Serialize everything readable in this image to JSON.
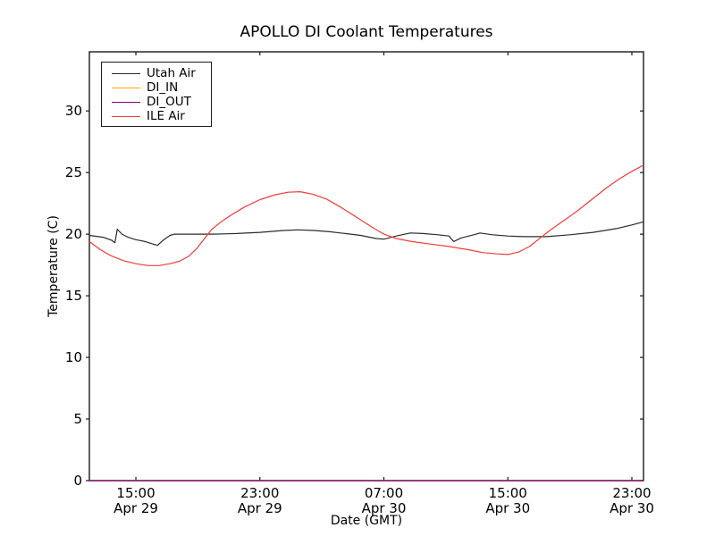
{
  "chart_data": {
    "type": "line",
    "title": "APOLLO DI Coolant Temperatures",
    "xlabel": "Date (GMT)",
    "ylabel": "Temperature (C)",
    "ylim": [
      0,
      34.8
    ],
    "xlim_hours": [
      0,
      35.75
    ],
    "grid": false,
    "legend_position": "upper left",
    "y_ticks": [
      0,
      5,
      10,
      15,
      20,
      25,
      30
    ],
    "x_ticks": [
      {
        "t": 3,
        "time": "15:00",
        "date": "Apr 29"
      },
      {
        "t": 11,
        "time": "23:00",
        "date": "Apr 29"
      },
      {
        "t": 19,
        "time": "07:00",
        "date": "Apr 30"
      },
      {
        "t": 27,
        "time": "15:00",
        "date": "Apr 30"
      },
      {
        "t": 35,
        "time": "23:00",
        "date": "Apr 30"
      }
    ],
    "series": [
      {
        "name": "Utah Air",
        "color": "#2b2b2b",
        "points": [
          [
            0,
            19.9
          ],
          [
            0.9,
            19.75
          ],
          [
            1.45,
            19.5
          ],
          [
            1.65,
            19.3
          ],
          [
            1.8,
            20.4
          ],
          [
            2.1,
            20.0
          ],
          [
            2.5,
            19.75
          ],
          [
            3.0,
            19.55
          ],
          [
            3.6,
            19.4
          ],
          [
            4.25,
            19.15
          ],
          [
            4.4,
            19.1
          ],
          [
            4.75,
            19.5
          ],
          [
            5.2,
            19.9
          ],
          [
            5.5,
            20.0
          ],
          [
            6.5,
            20.0
          ],
          [
            8.0,
            20.0
          ],
          [
            9.5,
            20.05
          ],
          [
            11.0,
            20.15
          ],
          [
            12.5,
            20.3
          ],
          [
            13.5,
            20.35
          ],
          [
            14.5,
            20.3
          ],
          [
            15.5,
            20.2
          ],
          [
            16.5,
            20.05
          ],
          [
            17.5,
            19.9
          ],
          [
            18.5,
            19.65
          ],
          [
            19.0,
            19.6
          ],
          [
            19.8,
            19.85
          ],
          [
            20.7,
            20.1
          ],
          [
            21.5,
            20.05
          ],
          [
            22.5,
            19.95
          ],
          [
            23.2,
            19.85
          ],
          [
            23.5,
            19.4
          ],
          [
            24.0,
            19.7
          ],
          [
            24.8,
            19.95
          ],
          [
            25.2,
            20.1
          ],
          [
            26.0,
            19.95
          ],
          [
            27.0,
            19.85
          ],
          [
            28.0,
            19.8
          ],
          [
            29.5,
            19.8
          ],
          [
            31.0,
            19.95
          ],
          [
            32.5,
            20.15
          ],
          [
            34.0,
            20.45
          ],
          [
            35.0,
            20.75
          ],
          [
            35.75,
            21.0
          ]
        ]
      },
      {
        "name": "DI_IN",
        "color": "#ffa500",
        "points": [
          [
            0,
            0
          ],
          [
            35.75,
            0
          ]
        ]
      },
      {
        "name": "DI_OUT",
        "color": "#800080",
        "points": [
          [
            0,
            0
          ],
          [
            35.75,
            0
          ]
        ]
      },
      {
        "name": "ILE Air",
        "color": "#f03b3b",
        "points": [
          [
            0,
            19.4
          ],
          [
            0.7,
            18.75
          ],
          [
            1.4,
            18.25
          ],
          [
            2.2,
            17.85
          ],
          [
            3.0,
            17.6
          ],
          [
            3.8,
            17.45
          ],
          [
            4.5,
            17.45
          ],
          [
            5.2,
            17.6
          ],
          [
            5.8,
            17.8
          ],
          [
            6.4,
            18.2
          ],
          [
            6.9,
            18.8
          ],
          [
            7.4,
            19.6
          ],
          [
            7.9,
            20.4
          ],
          [
            8.5,
            21.0
          ],
          [
            9.2,
            21.6
          ],
          [
            10.0,
            22.2
          ],
          [
            11.0,
            22.8
          ],
          [
            12.0,
            23.2
          ],
          [
            12.8,
            23.4
          ],
          [
            13.6,
            23.45
          ],
          [
            14.4,
            23.25
          ],
          [
            15.3,
            22.85
          ],
          [
            16.2,
            22.2
          ],
          [
            17.2,
            21.4
          ],
          [
            18.2,
            20.6
          ],
          [
            19.0,
            20.0
          ],
          [
            19.8,
            19.65
          ],
          [
            20.8,
            19.4
          ],
          [
            22.0,
            19.2
          ],
          [
            23.2,
            19.0
          ],
          [
            24.4,
            18.75
          ],
          [
            25.4,
            18.5
          ],
          [
            26.3,
            18.4
          ],
          [
            27.0,
            18.35
          ],
          [
            27.7,
            18.55
          ],
          [
            28.4,
            19.0
          ],
          [
            29.0,
            19.6
          ],
          [
            29.7,
            20.3
          ],
          [
            30.6,
            21.1
          ],
          [
            31.5,
            21.9
          ],
          [
            32.4,
            22.8
          ],
          [
            33.3,
            23.7
          ],
          [
            34.2,
            24.5
          ],
          [
            35.0,
            25.1
          ],
          [
            35.75,
            25.6
          ]
        ]
      }
    ]
  }
}
